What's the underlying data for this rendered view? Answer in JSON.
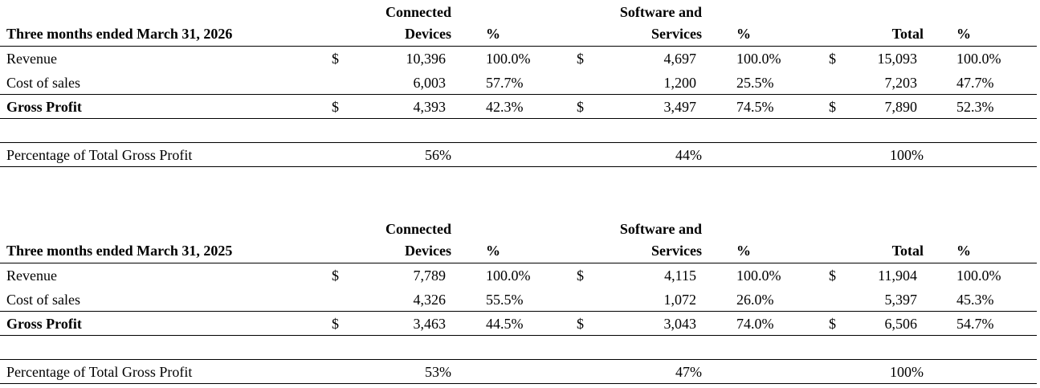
{
  "columns": {
    "connected_devices": [
      "Connected",
      "Devices"
    ],
    "software_and_services": [
      "Software and",
      "Services"
    ],
    "total": "Total",
    "pct": "%"
  },
  "currency": "$",
  "row_labels": {
    "revenue": "Revenue",
    "cost_of_sales": "Cost of sales",
    "gross_profit": "Gross Profit",
    "pct_total_gross_profit": "Percentage of Total Gross Profit"
  },
  "tables": [
    {
      "period": "Three months ended March 31, 2026",
      "revenue": {
        "cd": "10,396",
        "cd_pct": "100.0%",
        "ss": "4,697",
        "ss_pct": "100.0%",
        "total": "15,093",
        "total_pct": "100.0%"
      },
      "cost_of_sales": {
        "cd": "6,003",
        "cd_pct": "57.7%",
        "ss": "1,200",
        "ss_pct": "25.5%",
        "total": "7,203",
        "total_pct": "47.7%"
      },
      "gross_profit": {
        "cd": "4,393",
        "cd_pct": "42.3%",
        "ss": "3,497",
        "ss_pct": "74.5%",
        "total": "7,890",
        "total_pct": "52.3%"
      },
      "pct_total_gross_profit": {
        "cd": "56%",
        "ss": "44%",
        "total": "100%"
      }
    },
    {
      "period": "Three months ended March 31, 2025",
      "revenue": {
        "cd": "7,789",
        "cd_pct": "100.0%",
        "ss": "4,115",
        "ss_pct": "100.0%",
        "total": "11,904",
        "total_pct": "100.0%"
      },
      "cost_of_sales": {
        "cd": "4,326",
        "cd_pct": "55.5%",
        "ss": "1,072",
        "ss_pct": "26.0%",
        "total": "5,397",
        "total_pct": "45.3%"
      },
      "gross_profit": {
        "cd": "3,463",
        "cd_pct": "44.5%",
        "ss": "3,043",
        "ss_pct": "74.0%",
        "total": "6,506",
        "total_pct": "54.7%"
      },
      "pct_total_gross_profit": {
        "cd": "53%",
        "ss": "47%",
        "total": "100%"
      }
    }
  ]
}
